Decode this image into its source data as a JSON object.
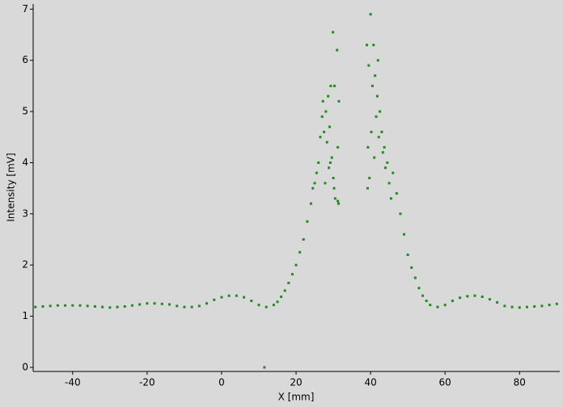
{
  "chart_data": {
    "type": "scatter",
    "x_label": "X [mm]",
    "y_label": "Intensity [mV]",
    "color": "#1e8c1e",
    "xlim": [
      -50.6,
      90.8
    ],
    "ylim": [
      -0.08,
      7.1
    ],
    "xticks": [
      -40,
      -20,
      0,
      20,
      40,
      60,
      80
    ],
    "yticks": [
      0,
      1,
      2,
      3,
      4,
      5,
      6,
      7
    ],
    "x": [
      -50,
      -48,
      -46,
      -44,
      -42,
      -40,
      -38,
      -36,
      -34,
      -32,
      -30,
      -28,
      -26,
      -24,
      -22,
      -20,
      -18,
      -16,
      -14,
      -12,
      -10,
      -8,
      -6,
      -4,
      -2,
      0,
      2,
      4,
      6,
      8,
      10,
      12,
      14,
      15,
      16,
      17,
      18,
      19,
      20,
      21,
      22,
      23,
      24,
      25,
      26,
      26.5,
      27,
      27.2,
      27.5,
      28,
      28.3,
      28.6,
      29,
      29.3,
      29.6,
      29.9,
      30,
      30.2,
      30.3,
      30.5,
      31,
      31.2,
      31.4,
      31.5,
      31.2,
      28.8,
      29.2,
      27.8,
      24.5,
      25.5,
      11.5,
      39,
      39.2,
      39.3,
      39.5,
      39.7,
      40,
      40.2,
      40.5,
      40.8,
      41,
      41.2,
      41.5,
      41.8,
      42,
      42.2,
      42.5,
      43,
      43.3,
      43.7,
      44,
      44.5,
      45,
      45.5,
      46,
      47,
      48,
      49,
      50,
      51,
      52,
      53,
      54,
      55,
      56,
      58,
      60,
      62,
      64,
      66,
      68,
      70,
      72,
      74,
      76,
      78,
      80,
      82,
      84,
      86,
      88,
      90
    ],
    "y": [
      1.18,
      1.19,
      1.2,
      1.21,
      1.21,
      1.21,
      1.21,
      1.2,
      1.19,
      1.18,
      1.17,
      1.18,
      1.19,
      1.21,
      1.23,
      1.25,
      1.25,
      1.24,
      1.23,
      1.2,
      1.18,
      1.18,
      1.2,
      1.25,
      1.32,
      1.37,
      1.4,
      1.4,
      1.37,
      1.3,
      1.22,
      1.18,
      1.22,
      1.28,
      1.38,
      1.5,
      1.65,
      1.82,
      2.0,
      2.25,
      2.5,
      2.85,
      3.2,
      3.6,
      4.0,
      4.5,
      4.9,
      5.2,
      4.6,
      5.0,
      4.4,
      5.3,
      4.7,
      5.5,
      4.1,
      6.55,
      3.7,
      3.5,
      5.5,
      3.3,
      6.2,
      4.3,
      3.2,
      5.2,
      3.25,
      3.9,
      4.0,
      3.6,
      3.5,
      3.8,
      0.0,
      6.3,
      3.5,
      4.3,
      5.9,
      3.7,
      6.9,
      4.6,
      5.5,
      6.3,
      4.1,
      5.7,
      4.9,
      5.3,
      6.0,
      4.5,
      5.0,
      4.6,
      4.2,
      4.3,
      3.9,
      4.0,
      3.6,
      3.3,
      3.8,
      3.4,
      3.0,
      2.6,
      2.2,
      1.95,
      1.75,
      1.55,
      1.4,
      1.3,
      1.22,
      1.18,
      1.22,
      1.3,
      1.36,
      1.39,
      1.4,
      1.38,
      1.33,
      1.27,
      1.2,
      1.18,
      1.17,
      1.18,
      1.19,
      1.2,
      1.22,
      1.24
    ]
  }
}
